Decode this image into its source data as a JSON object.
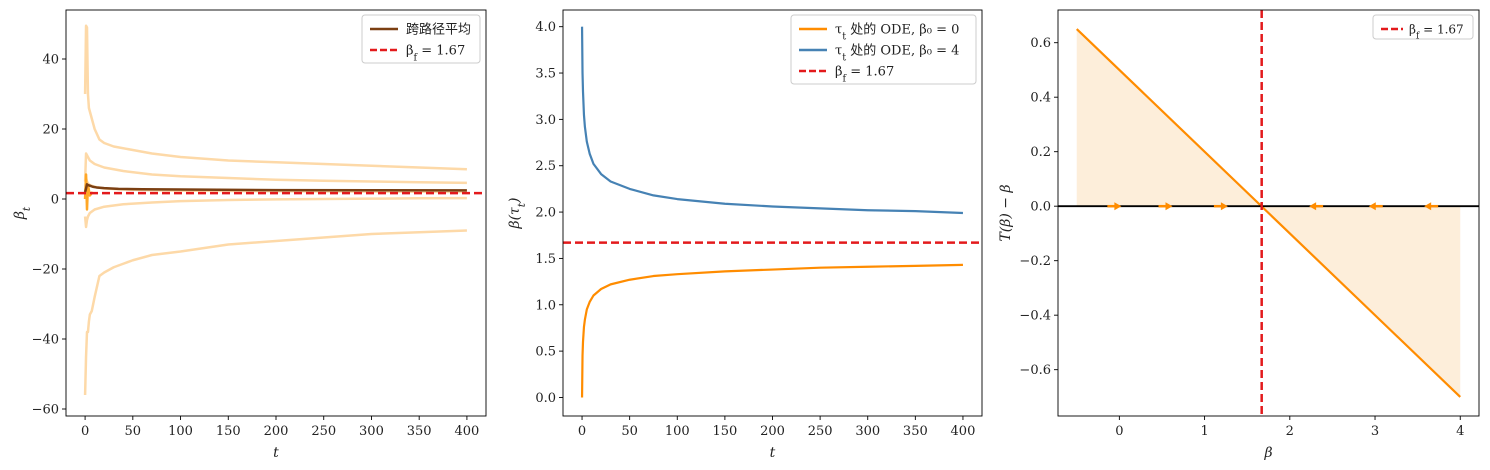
{
  "chart_data": [
    {
      "type": "line",
      "xlabel": "t",
      "ylabel": "β_t",
      "xlim": [
        -20,
        420
      ],
      "ylim": [
        -62,
        54
      ],
      "xticks": [
        0,
        50,
        100,
        150,
        200,
        250,
        300,
        350,
        400
      ],
      "yticks": [
        -60,
        -40,
        -20,
        0,
        20,
        40
      ],
      "ytick_labels": [
        "−60",
        "−40",
        "−20",
        "0",
        "20",
        "40"
      ],
      "legend": {
        "placement": "top-right",
        "entries": [
          "跨路径平均",
          "β_f = 1.67"
        ]
      },
      "hline": {
        "y": 1.67,
        "name": "β_f = 1.67",
        "color": "#e31a1c",
        "style": "dashed"
      },
      "series": [
        {
          "name": "跨路径平均",
          "color": "#7b3f12",
          "x": [
            0,
            1,
            2,
            3,
            5,
            8,
            12,
            20,
            35,
            60,
            100,
            200,
            300,
            400
          ],
          "y": [
            2.0,
            3.0,
            4.2,
            4.0,
            3.8,
            3.5,
            3.3,
            3.1,
            2.9,
            2.8,
            2.7,
            2.55,
            2.5,
            2.45
          ]
        },
        {
          "color": "#fdd9a8",
          "x": [
            0,
            1,
            2,
            3,
            4,
            5,
            7,
            10,
            15,
            20,
            30,
            40,
            50,
            70,
            100,
            150,
            200,
            250,
            300,
            350,
            400
          ],
          "y": [
            -56,
            -45,
            -38,
            -38,
            -35,
            -33,
            -32,
            -28,
            -22,
            -21,
            -19.5,
            -18.5,
            -17.5,
            -16,
            -15,
            -13,
            -12,
            -11,
            -10,
            -9.5,
            -9
          ]
        },
        {
          "color": "#fdd9a8",
          "x": [
            0,
            1,
            2,
            3,
            4,
            5,
            7,
            10,
            15,
            20,
            30,
            50,
            70,
            100,
            150,
            200,
            250,
            300,
            350,
            400
          ],
          "y": [
            30,
            49.5,
            49,
            30,
            26,
            25,
            23,
            20,
            17,
            16,
            15,
            14,
            13,
            12,
            11,
            10.5,
            10,
            9.5,
            9,
            8.5
          ]
        },
        {
          "color": "#fdd9a8",
          "x": [
            0,
            1,
            2,
            3,
            5,
            10,
            20,
            40,
            70,
            100,
            150,
            200,
            250,
            300,
            350,
            400
          ],
          "y": [
            5,
            13,
            12.5,
            12,
            11,
            10,
            9,
            8,
            7,
            6.5,
            6,
            5.5,
            5.2,
            5,
            4.8,
            4.6
          ]
        },
        {
          "color": "#fdd9a8",
          "x": [
            0,
            1,
            2,
            3,
            5,
            10,
            20,
            40,
            70,
            100,
            150,
            200,
            250,
            300,
            350,
            400
          ],
          "y": [
            -5,
            -8,
            -6,
            -5,
            -4,
            -3,
            -2.2,
            -1.5,
            -1,
            -0.6,
            -0.3,
            -0.1,
            0,
            0.1,
            0.2,
            0.25
          ]
        },
        {
          "color": "#fdd9a8",
          "x": [
            0,
            1,
            2,
            3,
            5,
            10,
            20,
            40,
            70,
            100,
            150,
            200,
            300,
            400
          ],
          "y": [
            0,
            6,
            5,
            4.5,
            4,
            3.5,
            3,
            2.7,
            2.5,
            2.4,
            2.3,
            2.2,
            2.1,
            2.0
          ]
        },
        {
          "color": "#ffa726",
          "x": [
            0,
            1,
            2,
            3,
            5,
            8
          ],
          "y": [
            0,
            7,
            -3,
            4,
            1,
            2
          ]
        }
      ]
    },
    {
      "type": "line",
      "xlabel": "t",
      "ylabel": "β(τ_t)",
      "xlim": [
        -20,
        420
      ],
      "ylim": [
        -0.2,
        4.18
      ],
      "xticks": [
        0,
        50,
        100,
        150,
        200,
        250,
        300,
        350,
        400
      ],
      "yticks": [
        0.0,
        0.5,
        1.0,
        1.5,
        2.0,
        2.5,
        3.0,
        3.5,
        4.0
      ],
      "ytick_labels": [
        "0.0",
        "0.5",
        "1.0",
        "1.5",
        "2.0",
        "2.5",
        "3.0",
        "3.5",
        "4.0"
      ],
      "legend": {
        "placement": "top-right",
        "entries": [
          "τ_t 处的 ODE,  β₀ = 0",
          "τ_t 处的 ODE,  β₀ = 4",
          "β_f = 1.67"
        ]
      },
      "hline": {
        "y": 1.67,
        "name": "β_f = 1.67",
        "color": "#e31a1c",
        "style": "dashed"
      },
      "series": [
        {
          "name": "τ_t 处的 ODE,  β₀ = 0",
          "color": "#ff8c00",
          "x": [
            0,
            0.5,
            1,
            2,
            3,
            5,
            8,
            12,
            20,
            30,
            50,
            75,
            100,
            150,
            200,
            250,
            300,
            350,
            400
          ],
          "y": [
            0.0,
            0.45,
            0.6,
            0.76,
            0.84,
            0.95,
            1.03,
            1.1,
            1.17,
            1.22,
            1.27,
            1.31,
            1.33,
            1.36,
            1.38,
            1.4,
            1.41,
            1.42,
            1.43
          ]
        },
        {
          "name": "τ_t 处的 ODE,  β₀ = 4",
          "color": "#4682b4",
          "x": [
            0,
            0.5,
            1,
            2,
            3,
            5,
            8,
            12,
            20,
            30,
            50,
            75,
            100,
            150,
            200,
            250,
            300,
            350,
            400
          ],
          "y": [
            4.0,
            3.5,
            3.3,
            3.05,
            2.92,
            2.76,
            2.63,
            2.52,
            2.41,
            2.33,
            2.25,
            2.18,
            2.14,
            2.09,
            2.06,
            2.04,
            2.02,
            2.01,
            1.99
          ]
        }
      ]
    },
    {
      "type": "line",
      "xlabel": "β",
      "ylabel": "T(β) − β",
      "xlim": [
        -0.72,
        4.22
      ],
      "ylim": [
        -0.77,
        0.72
      ],
      "xticks": [
        0,
        1,
        2,
        3,
        4
      ],
      "yticks": [
        -0.6,
        -0.4,
        -0.2,
        0.0,
        0.2,
        0.4,
        0.6
      ],
      "ytick_labels": [
        "−0.6",
        "−0.4",
        "−0.2",
        "0.0",
        "0.2",
        "0.4",
        "0.6"
      ],
      "legend": {
        "placement": "top-right",
        "entries": [
          "β_f = 1.67"
        ]
      },
      "vline": {
        "x": 1.67,
        "name": "β_f = 1.67",
        "color": "#e31a1c",
        "style": "dashed"
      },
      "hline": {
        "y": 0,
        "color": "#000000",
        "style": "solid"
      },
      "fill": {
        "color": "#fdebd3"
      },
      "series": [
        {
          "color": "#ff8c00",
          "x": [
            -0.5,
            4.0
          ],
          "y": [
            0.65,
            -0.7
          ]
        }
      ],
      "arrows": {
        "color": "#ff8c00",
        "right": [
          0,
          0.6,
          1.25
        ],
        "left": [
          2.25,
          2.95,
          3.6
        ]
      }
    }
  ]
}
